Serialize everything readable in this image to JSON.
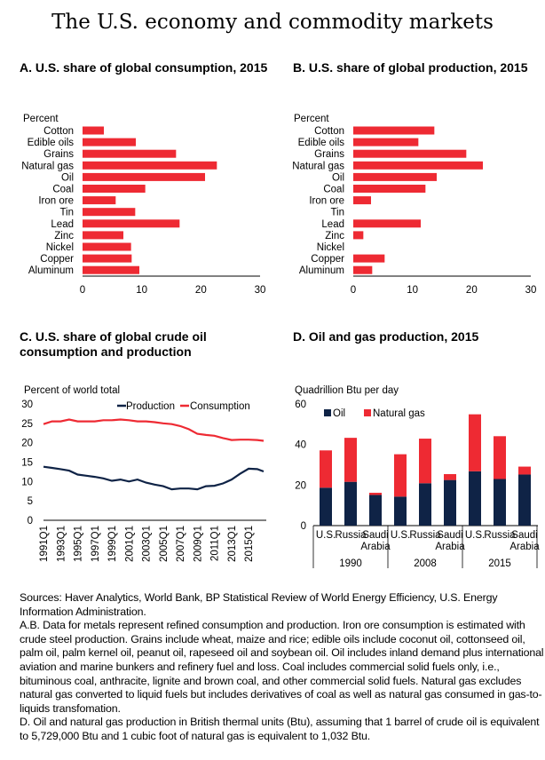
{
  "title": "The U.S. economy and commodity markets",
  "panels": {
    "a_title": "A. U.S. share of global consumption, 2015",
    "b_title": "B. U.S. share of global production, 2015",
    "c_title": "C. U.S. share of global crude oil consumption and production",
    "d_title": "D. Oil and gas production, 2015"
  },
  "colors": {
    "red": "#ee2a33",
    "navy": "#0f2346"
  },
  "chart_data": [
    {
      "type": "bar",
      "orientation": "horizontal",
      "ylabel": "Percent",
      "categories": [
        "Cotton",
        "Edible oils",
        "Grains",
        "Natural gas",
        "Oil",
        "Coal",
        "Iron ore",
        "Tin",
        "Lead",
        "Zinc",
        "Nickel",
        "Copper",
        "Aluminum"
      ],
      "values": [
        3.6,
        9.0,
        15.8,
        22.7,
        20.7,
        10.6,
        5.6,
        8.9,
        16.4,
        6.9,
        8.2,
        8.3,
        9.6
      ],
      "xlim": [
        0,
        30
      ],
      "ticks": [
        "0",
        "10",
        "20",
        "30"
      ]
    },
    {
      "type": "bar",
      "orientation": "horizontal",
      "ylabel": "Percent",
      "categories": [
        "Cotton",
        "Edible oils",
        "Grains",
        "Natural gas",
        "Oil",
        "Coal",
        "Iron ore",
        "Tin",
        "Lead",
        "Zinc",
        "Nickel",
        "Copper",
        "Aluminum"
      ],
      "values": [
        13.7,
        11.0,
        19.1,
        21.9,
        14.1,
        12.2,
        3.0,
        0,
        11.4,
        1.7,
        0,
        5.3,
        3.2
      ],
      "xlim": [
        0,
        30
      ],
      "ticks": [
        "0",
        "10",
        "20",
        "30"
      ]
    },
    {
      "type": "line",
      "ylabel": "Percent of world total",
      "ylim": [
        0,
        30
      ],
      "yticks": [
        "0",
        "5",
        "10",
        "15",
        "20",
        "25",
        "30"
      ],
      "xticks": [
        "1991Q1",
        "1993Q1",
        "1995Q1",
        "1997Q1",
        "1999Q1",
        "2001Q1",
        "2003Q1",
        "2005Q1",
        "2007Q1",
        "2009Q1",
        "2011Q1",
        "2013Q1",
        "2015Q1"
      ],
      "x": [
        "1991Q1",
        "1992Q1",
        "1993Q1",
        "1994Q1",
        "1995Q1",
        "1996Q1",
        "1997Q1",
        "1998Q1",
        "1999Q1",
        "2000Q1",
        "2001Q1",
        "2002Q1",
        "2003Q1",
        "2004Q1",
        "2005Q1",
        "2006Q1",
        "2007Q1",
        "2008Q1",
        "2009Q1",
        "2010Q1",
        "2011Q1",
        "2012Q1",
        "2013Q1",
        "2014Q1",
        "2015Q1",
        "2016Q1",
        "2016Q4"
      ],
      "series": [
        {
          "name": "Production",
          "values": [
            13.8,
            13.5,
            13.2,
            12.8,
            11.8,
            11.5,
            11.2,
            10.8,
            10.2,
            10.5,
            10.0,
            10.5,
            9.7,
            9.2,
            8.8,
            8.0,
            8.2,
            8.2,
            8.0,
            8.8,
            8.9,
            9.5,
            10.5,
            12.0,
            13.3,
            13.2,
            12.6
          ]
        },
        {
          "name": "Consumption",
          "values": [
            24.8,
            25.5,
            25.5,
            26.0,
            25.5,
            25.5,
            25.5,
            25.8,
            25.8,
            26.0,
            25.8,
            25.5,
            25.5,
            25.3,
            25.0,
            24.8,
            24.3,
            23.5,
            22.3,
            22.0,
            21.8,
            21.2,
            20.7,
            20.8,
            20.8,
            20.7,
            20.5
          ]
        }
      ],
      "legend": "top"
    },
    {
      "type": "bar",
      "stacked": true,
      "ylabel": "Quadrillion Btu per day",
      "ylim": [
        0,
        60
      ],
      "yticks": [
        "0",
        "20",
        "40",
        "60"
      ],
      "groups": [
        "1990",
        "2008",
        "2015"
      ],
      "categories": [
        "U.S.",
        "Russia",
        "Saudi Arabia"
      ],
      "category_lines": [
        [
          "U.S.",
          ""
        ],
        [
          "Russia",
          ""
        ],
        [
          "Saudi",
          "Arabia"
        ]
      ],
      "series": [
        {
          "name": "Oil",
          "values": [
            [
              18.7,
              21.6,
              15.1
            ],
            [
              14.3,
              20.9,
              22.5
            ],
            [
              26.8,
              23.0,
              25.2
            ]
          ]
        },
        {
          "name": "Natural gas",
          "values": [
            [
              18.4,
              21.7,
              1.1
            ],
            [
              20.9,
              22.0,
              2.9
            ],
            [
              28.1,
              21.1,
              3.9
            ]
          ]
        }
      ],
      "legend": "top-left"
    }
  ],
  "notes": [
    "Sources: Haver Analytics, World Bank, BP Statistical Review of World Energy Efficiency, U.S. Energy Information Administration.",
    "A.B. Data for metals represent refined consumption and production. Iron ore consumption is estimated with crude steel production. Grains include wheat, maize and rice; edible oils include coconut oil, cottonseed oil, palm oil, palm kernel oil, peanut oil, rapeseed oil and soybean oil. Oil includes inland demand plus international aviation and marine bunkers and refinery fuel and loss. Coal includes commercial solid fuels only, i.e., bituminous coal, anthracite, lignite and brown coal, and other commercial solid fuels. Natural gas excludes natural gas converted to liquid fuels but includes derivatives of coal as well as natural gas consumed in gas-to-liquids transfomation.",
    "D. Oil and natural gas production in British thermal units (Btu), assuming that 1 barrel of crude oil is equivalent to 5,729,000 Btu and 1 cubic foot of natural gas is equivalent to 1,032 Btu."
  ]
}
